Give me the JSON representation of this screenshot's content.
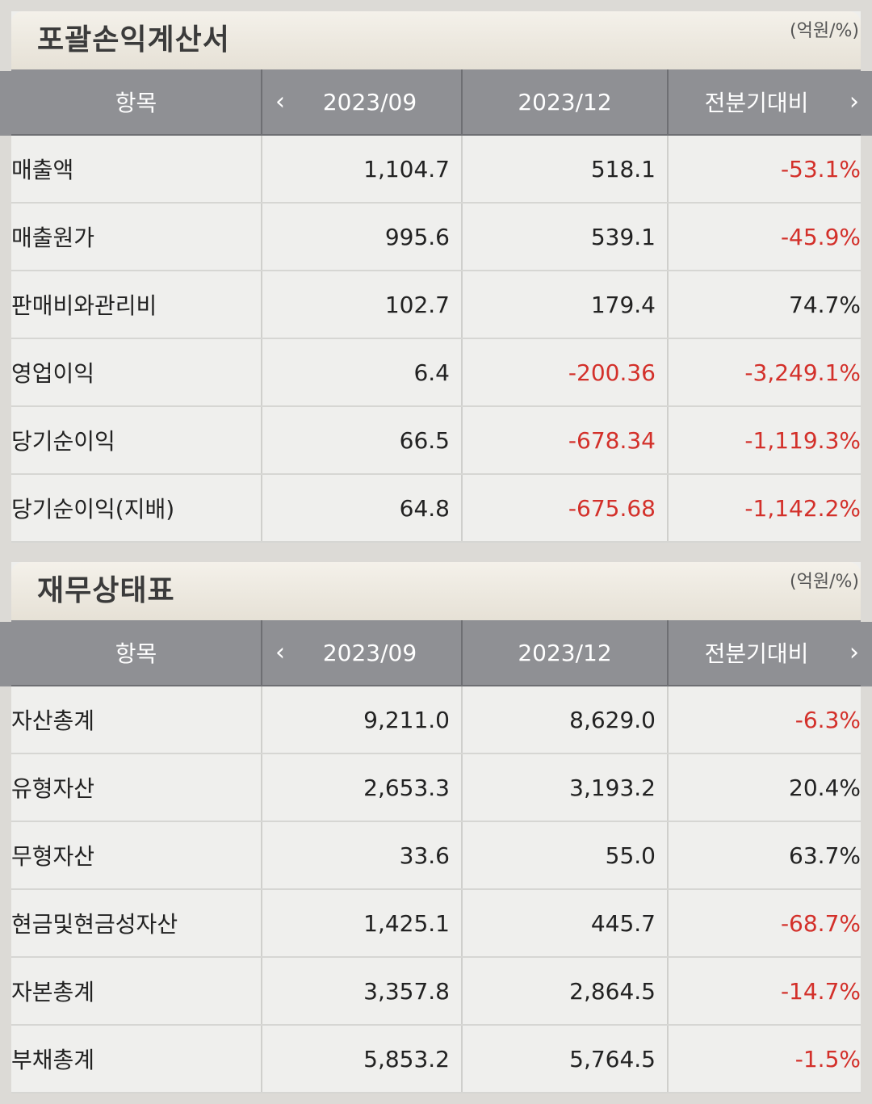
{
  "units": "(억원/%)",
  "income_statement": {
    "title": "포괄손익계산서",
    "headers": {
      "item": "항목",
      "period1": "2023/09",
      "period2": "2023/12",
      "change": "전분기대비"
    },
    "rows": [
      {
        "label": "매출액",
        "p1": "1,104.7",
        "p2": "518.1",
        "chg": "-53.1%",
        "p1_neg": false,
        "p2_neg": false,
        "chg_neg": true
      },
      {
        "label": "매출원가",
        "p1": "995.6",
        "p2": "539.1",
        "chg": "-45.9%",
        "p1_neg": false,
        "p2_neg": false,
        "chg_neg": true
      },
      {
        "label": "판매비와관리비",
        "p1": "102.7",
        "p2": "179.4",
        "chg": "74.7%",
        "p1_neg": false,
        "p2_neg": false,
        "chg_neg": false
      },
      {
        "label": "영업이익",
        "p1": "6.4",
        "p2": "-200.36",
        "chg": "-3,249.1%",
        "p1_neg": false,
        "p2_neg": true,
        "chg_neg": true
      },
      {
        "label": "당기순이익",
        "p1": "66.5",
        "p2": "-678.34",
        "chg": "-1,119.3%",
        "p1_neg": false,
        "p2_neg": true,
        "chg_neg": true
      },
      {
        "label": "당기순이익(지배)",
        "p1": "64.8",
        "p2": "-675.68",
        "chg": "-1,142.2%",
        "p1_neg": false,
        "p2_neg": true,
        "chg_neg": true
      }
    ]
  },
  "balance_sheet": {
    "title": "재무상태표",
    "headers": {
      "item": "항목",
      "period1": "2023/09",
      "period2": "2023/12",
      "change": "전분기대비"
    },
    "rows": [
      {
        "label": "자산총계",
        "p1": "9,211.0",
        "p2": "8,629.0",
        "chg": "-6.3%",
        "p1_neg": false,
        "p2_neg": false,
        "chg_neg": true
      },
      {
        "label": "유형자산",
        "p1": "2,653.3",
        "p2": "3,193.2",
        "chg": "20.4%",
        "p1_neg": false,
        "p2_neg": false,
        "chg_neg": false
      },
      {
        "label": "무형자산",
        "p1": "33.6",
        "p2": "55.0",
        "chg": "63.7%",
        "p1_neg": false,
        "p2_neg": false,
        "chg_neg": false
      },
      {
        "label": "현금및현금성자산",
        "p1": "1,425.1",
        "p2": "445.7",
        "chg": "-68.7%",
        "p1_neg": false,
        "p2_neg": false,
        "chg_neg": true
      },
      {
        "label": "자본총계",
        "p1": "3,357.8",
        "p2": "2,864.5",
        "chg": "-14.7%",
        "p1_neg": false,
        "p2_neg": false,
        "chg_neg": true
      },
      {
        "label": "부채총계",
        "p1": "5,853.2",
        "p2": "5,764.5",
        "chg": "-1.5%",
        "p1_neg": false,
        "p2_neg": false,
        "chg_neg": true
      }
    ]
  },
  "colors": {
    "negative": "#d3302a",
    "header_bg": "#8f9094"
  },
  "icons": {
    "prev": "chevron-left-icon",
    "next": "chevron-right-icon"
  }
}
